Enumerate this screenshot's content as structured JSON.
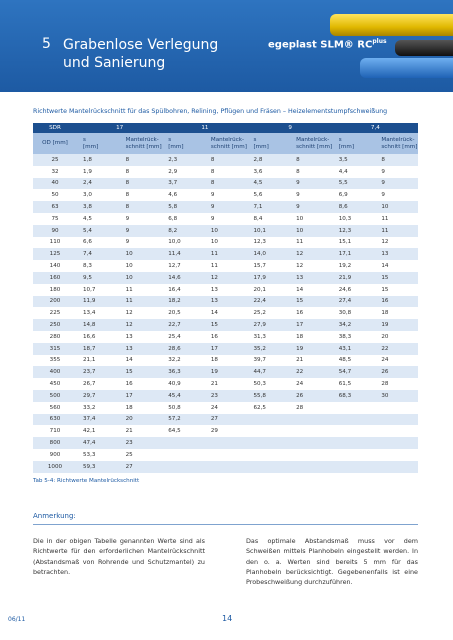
{
  "header": {
    "chapter": "5",
    "title_line1": "Grabenlose Verlegung",
    "title_line2": "und Sanierung",
    "brand": "egeplast",
    "product": "SLM®",
    "product_suffix": "RC",
    "product_sup": "plus"
  },
  "caption": "Richtwerte Mantelrückschnitt für das Spülbohren, Relining, Pflügen und Fräsen – Heizelementstumpfschweißung",
  "table": {
    "sdr_label": "SDR",
    "sdr_values": [
      "17",
      "11",
      "9",
      "7,4"
    ],
    "od_header": "OD [mm]",
    "s_header": "s\n[mm]",
    "cut_header": "Mantelrück-\nschnitt [mm]",
    "rows": [
      [
        "25",
        "1,8",
        "8",
        "2,3",
        "8",
        "2,8",
        "8",
        "3,5",
        "8"
      ],
      [
        "32",
        "1,9",
        "8",
        "2,9",
        "8",
        "3,6",
        "8",
        "4,4",
        "9"
      ],
      [
        "40",
        "2,4",
        "8",
        "3,7",
        "8",
        "4,5",
        "9",
        "5,5",
        "9"
      ],
      [
        "50",
        "3,0",
        "8",
        "4,6",
        "9",
        "5,6",
        "9",
        "6,9",
        "9"
      ],
      [
        "63",
        "3,8",
        "8",
        "5,8",
        "9",
        "7,1",
        "9",
        "8,6",
        "10"
      ],
      [
        "75",
        "4,5",
        "9",
        "6,8",
        "9",
        "8,4",
        "10",
        "10,3",
        "11"
      ],
      [
        "90",
        "5,4",
        "9",
        "8,2",
        "10",
        "10,1",
        "10",
        "12,3",
        "11"
      ],
      [
        "110",
        "6,6",
        "9",
        "10,0",
        "10",
        "12,3",
        "11",
        "15,1",
        "12"
      ],
      [
        "125",
        "7,4",
        "10",
        "11,4",
        "11",
        "14,0",
        "12",
        "17,1",
        "13"
      ],
      [
        "140",
        "8,3",
        "10",
        "12,7",
        "11",
        "15,7",
        "12",
        "19,2",
        "14"
      ],
      [
        "160",
        "9,5",
        "10",
        "14,6",
        "12",
        "17,9",
        "13",
        "21,9",
        "15"
      ],
      [
        "180",
        "10,7",
        "11",
        "16,4",
        "13",
        "20,1",
        "14",
        "24,6",
        "15"
      ],
      [
        "200",
        "11,9",
        "11",
        "18,2",
        "13",
        "22,4",
        "15",
        "27,4",
        "16"
      ],
      [
        "225",
        "13,4",
        "12",
        "20,5",
        "14",
        "25,2",
        "16",
        "30,8",
        "18"
      ],
      [
        "250",
        "14,8",
        "12",
        "22,7",
        "15",
        "27,9",
        "17",
        "34,2",
        "19"
      ],
      [
        "280",
        "16,6",
        "13",
        "25,4",
        "16",
        "31,3",
        "18",
        "38,3",
        "20"
      ],
      [
        "315",
        "18,7",
        "13",
        "28,6",
        "17",
        "35,2",
        "19",
        "43,1",
        "22"
      ],
      [
        "355",
        "21,1",
        "14",
        "32,2",
        "18",
        "39,7",
        "21",
        "48,5",
        "24"
      ],
      [
        "400",
        "23,7",
        "15",
        "36,3",
        "19",
        "44,7",
        "22",
        "54,7",
        "26"
      ],
      [
        "450",
        "26,7",
        "16",
        "40,9",
        "21",
        "50,3",
        "24",
        "61,5",
        "28"
      ],
      [
        "500",
        "29,7",
        "17",
        "45,4",
        "23",
        "55,8",
        "26",
        "68,3",
        "30"
      ],
      [
        "560",
        "33,2",
        "18",
        "50,8",
        "24",
        "62,5",
        "28"
      ],
      [
        "630",
        "37,4",
        "20",
        "57,2",
        "27"
      ],
      [
        "710",
        "42,1",
        "21",
        "64,5",
        "29"
      ],
      [
        "800",
        "47,4",
        "23"
      ],
      [
        "900",
        "53,3",
        "25"
      ],
      [
        "1000",
        "59,3",
        "27"
      ]
    ],
    "caption": "Tab 5-4: Richtwerte Mantelrückschnitt"
  },
  "note": {
    "heading": "Anmerkung:",
    "left": "Die in der obigen Tabelle genannten Werte sind als Richtwerte für den erforderlichen Mantelrückschnitt (Abstandsmaß von Rohrende und Schutzmantel) zu betrachten.",
    "right": "Das optimale Abstandsmaß muss vor dem Schweißen mittels Planhobeln eingestellt werden. In den o. a. Werten sind bereits 5 mm für das Planhobeln berücksichtigt. Gegebenenfalls ist eine Probeschweißung durchzuführen."
  },
  "footer": {
    "date": "06/11",
    "page": "14"
  }
}
